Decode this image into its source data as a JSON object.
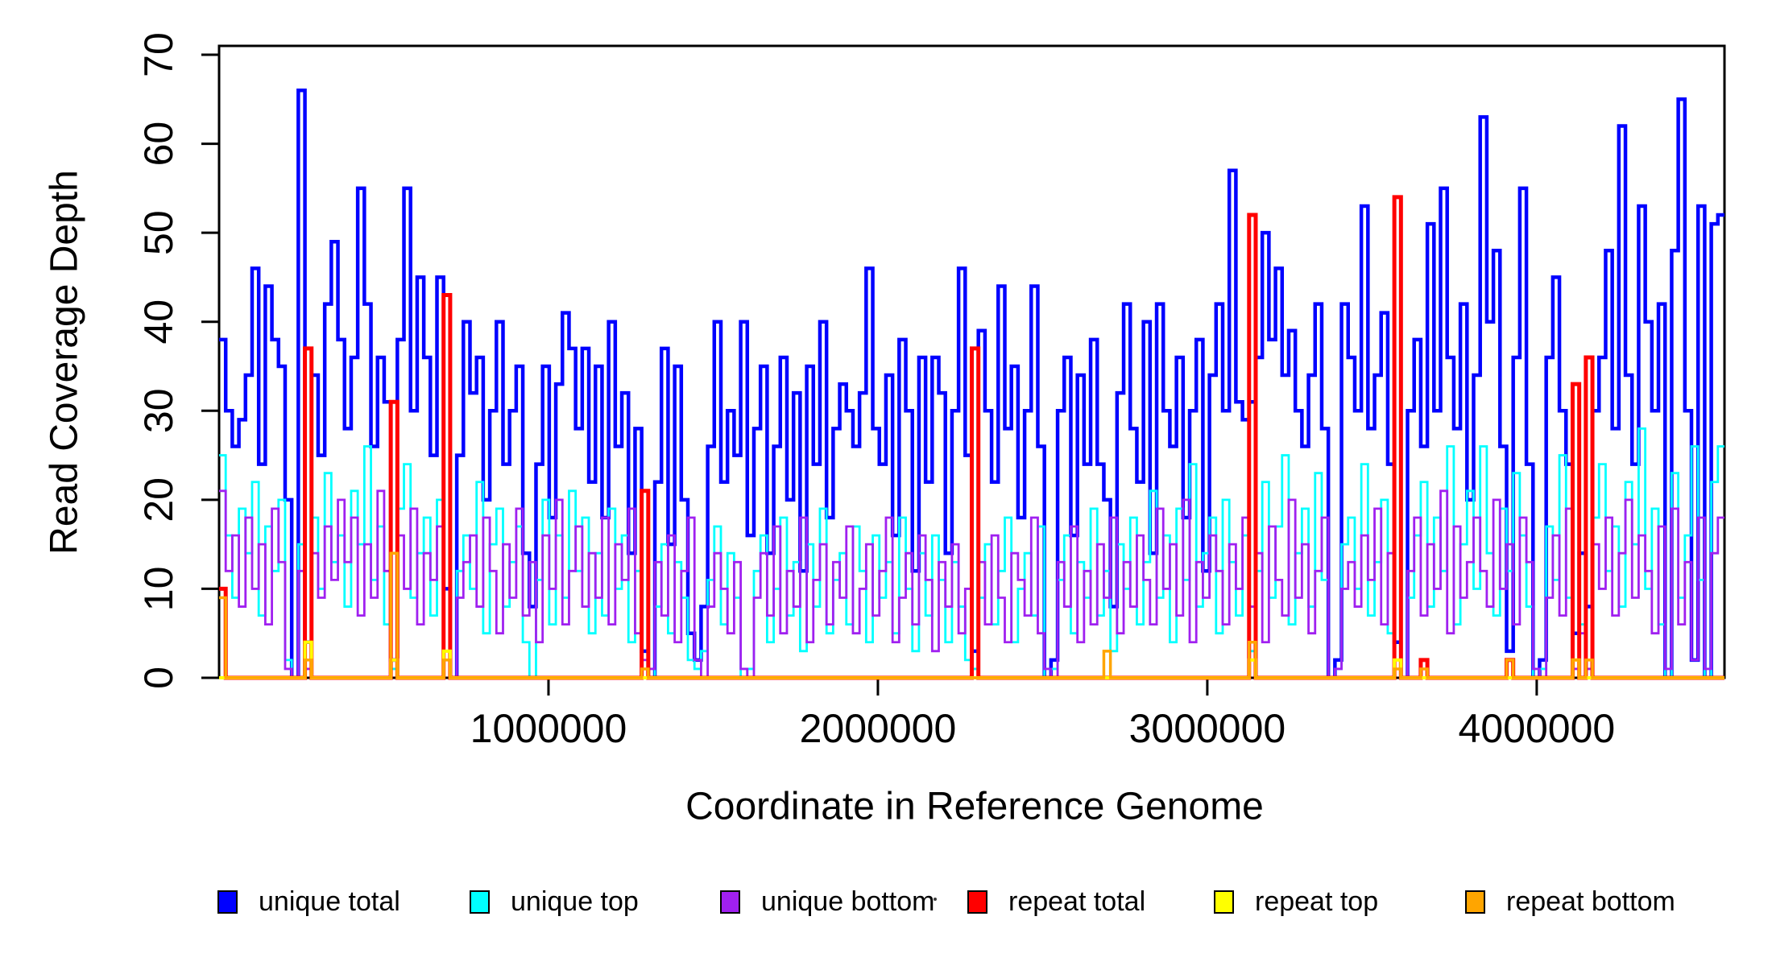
{
  "figure": {
    "y_axis_label": "Read Coverage Depth",
    "x_axis_label": "Coordinate in Reference Genome"
  },
  "chart_data": {
    "type": "line",
    "step": true,
    "title": "",
    "xlabel": "Coordinate in Reference Genome",
    "ylabel": "Read Coverage Depth",
    "xlim": [
      0,
      4570000
    ],
    "ylim": [
      0,
      70
    ],
    "grid": false,
    "legend_position": "bottom",
    "x_start": 0,
    "bin_size": 20000,
    "n_bins": 228,
    "x_ticks": [
      {
        "value": 1000000,
        "label": "1000000"
      },
      {
        "value": 2000000,
        "label": "2000000"
      },
      {
        "value": 3000000,
        "label": "3000000"
      },
      {
        "value": 4000000,
        "label": "4000000"
      }
    ],
    "y_ticks": [
      {
        "value": 0,
        "label": "0"
      },
      {
        "value": 10,
        "label": "10"
      },
      {
        "value": 20,
        "label": "20"
      },
      {
        "value": 30,
        "label": "30"
      },
      {
        "value": 40,
        "label": "40"
      },
      {
        "value": 50,
        "label": "50"
      },
      {
        "value": 60,
        "label": "60"
      },
      {
        "value": 70,
        "label": "70"
      }
    ],
    "series": [
      {
        "id": "unique-total",
        "name": "unique total",
        "color": "#0000FF",
        "line_width": 4.5,
        "values": [
          38,
          30,
          26,
          29,
          34,
          46,
          24,
          44,
          38,
          35,
          20,
          0,
          66,
          4,
          34,
          25,
          42,
          49,
          38,
          28,
          36,
          55,
          42,
          26,
          36,
          31,
          2,
          38,
          55,
          30,
          45,
          36,
          25,
          45,
          10,
          0,
          25,
          40,
          32,
          36,
          20,
          30,
          40,
          24,
          30,
          35,
          14,
          8,
          24,
          35,
          18,
          33,
          41,
          37,
          28,
          37,
          22,
          35,
          18,
          40,
          26,
          32,
          14,
          28,
          3,
          0,
          22,
          37,
          15,
          35,
          20,
          5,
          2,
          8,
          26,
          40,
          22,
          30,
          25,
          40,
          16,
          28,
          35,
          14,
          26,
          36,
          20,
          32,
          12,
          35,
          24,
          40,
          18,
          28,
          33,
          30,
          26,
          32,
          46,
          28,
          24,
          34,
          16,
          38,
          30,
          12,
          36,
          22,
          36,
          32,
          14,
          30,
          46,
          25,
          3,
          39,
          30,
          22,
          44,
          28,
          35,
          18,
          30,
          44,
          26,
          0,
          2,
          30,
          36,
          16,
          34,
          24,
          38,
          24,
          20,
          8,
          32,
          42,
          28,
          22,
          40,
          14,
          42,
          30,
          26,
          36,
          18,
          30,
          38,
          12,
          34,
          42,
          30,
          57,
          31,
          29,
          31,
          36,
          50,
          38,
          46,
          34,
          39,
          30,
          26,
          34,
          42,
          28,
          0,
          2,
          42,
          36,
          30,
          53,
          28,
          34,
          41,
          24,
          4,
          0,
          30,
          38,
          26,
          51,
          30,
          55,
          36,
          28,
          42,
          20,
          34,
          63,
          40,
          48,
          26,
          3,
          36,
          55,
          24,
          0,
          2,
          36,
          45,
          30,
          24,
          5,
          14,
          8,
          30,
          36,
          48,
          28,
          62,
          34,
          24,
          53,
          40,
          30,
          42,
          0,
          48,
          65,
          30,
          2,
          53,
          0,
          51,
          52
        ]
      },
      {
        "id": "unique-top",
        "name": "unique top",
        "color": "#00FFFF",
        "line_width": 2.8,
        "values": [
          25,
          16,
          9,
          19,
          14,
          22,
          7,
          17,
          12,
          20,
          2,
          0,
          15,
          2,
          18,
          10,
          23,
          13,
          16,
          8,
          21,
          15,
          26,
          11,
          17,
          6,
          1,
          19,
          24,
          9,
          14,
          18,
          7,
          20,
          3,
          0,
          12,
          16,
          10,
          22,
          5,
          15,
          19,
          8,
          13,
          17,
          4,
          0,
          11,
          20,
          6,
          16,
          9,
          21,
          12,
          18,
          5,
          14,
          7,
          19,
          10,
          16,
          4,
          12,
          1,
          0,
          8,
          15,
          5,
          13,
          9,
          2,
          1,
          3,
          11,
          17,
          6,
          14,
          9,
          0,
          1,
          12,
          16,
          4,
          10,
          18,
          7,
          13,
          3,
          15,
          8,
          19,
          5,
          11,
          14,
          6,
          17,
          12,
          4,
          16,
          9,
          13,
          5,
          18,
          10,
          3,
          14,
          7,
          16,
          11,
          4,
          13,
          8,
          2,
          1,
          9,
          15,
          6,
          12,
          18,
          4,
          10,
          14,
          7,
          17,
          0,
          1,
          11,
          16,
          5,
          13,
          9,
          19,
          7,
          12,
          3,
          15,
          10,
          18,
          6,
          13,
          21,
          9,
          16,
          4,
          19,
          11,
          24,
          8,
          14,
          18,
          5,
          20,
          13,
          7,
          16,
          3,
          12,
          22,
          9,
          17,
          25,
          6,
          14,
          19,
          8,
          23,
          11,
          0,
          1,
          15,
          18,
          10,
          24,
          7,
          13,
          20,
          5,
          2,
          0,
          9,
          16,
          22,
          8,
          18,
          12,
          26,
          6,
          15,
          21,
          10,
          26,
          14,
          7,
          19,
          12,
          23,
          16,
          8,
          0,
          1,
          17,
          11,
          25,
          9,
          2,
          6,
          2,
          18,
          24,
          12,
          17,
          8,
          22,
          15,
          28,
          10,
          19,
          6,
          0,
          23,
          9,
          16,
          26,
          11,
          0,
          22,
          26
        ]
      },
      {
        "id": "unique-bottom",
        "name": "unique bottom",
        "color": "#A020F0",
        "line_width": 2.8,
        "values": [
          21,
          12,
          16,
          8,
          18,
          10,
          15,
          6,
          19,
          13,
          1,
          0,
          12,
          1,
          14,
          9,
          17,
          11,
          20,
          13,
          18,
          7,
          15,
          9,
          21,
          12,
          2,
          16,
          10,
          19,
          6,
          14,
          11,
          17,
          2,
          0,
          9,
          13,
          16,
          8,
          18,
          12,
          5,
          15,
          9,
          19,
          7,
          13,
          4,
          16,
          10,
          20,
          6,
          12,
          17,
          8,
          14,
          9,
          18,
          6,
          15,
          11,
          19,
          5,
          2,
          1,
          13,
          7,
          16,
          4,
          12,
          18,
          2,
          0,
          8,
          14,
          10,
          5,
          13,
          1,
          0,
          9,
          14,
          7,
          17,
          5,
          12,
          8,
          18,
          4,
          11,
          15,
          6,
          13,
          9,
          17,
          5,
          10,
          15,
          7,
          12,
          18,
          4,
          9,
          14,
          6,
          16,
          11,
          3,
          13,
          8,
          15,
          5,
          10,
          0,
          13,
          6,
          16,
          9,
          4,
          14,
          11,
          7,
          18,
          5,
          1,
          0,
          13,
          8,
          17,
          4,
          12,
          6,
          15,
          9,
          18,
          5,
          13,
          8,
          16,
          11,
          6,
          19,
          10,
          15,
          7,
          20,
          4,
          13,
          9,
          16,
          12,
          6,
          15,
          10,
          18,
          8,
          14,
          4,
          17,
          11,
          7,
          20,
          9,
          15,
          5,
          12,
          18,
          0,
          1,
          10,
          13,
          8,
          16,
          11,
          19,
          6,
          14,
          1,
          0,
          12,
          18,
          7,
          15,
          10,
          21,
          5,
          17,
          9,
          13,
          18,
          12,
          8,
          20,
          10,
          15,
          6,
          18,
          13,
          1,
          0,
          9,
          16,
          7,
          19,
          1,
          5,
          1,
          15,
          10,
          18,
          7,
          14,
          20,
          9,
          16,
          12,
          5,
          17,
          1,
          19,
          6,
          13,
          2,
          18,
          1,
          14,
          18
        ]
      },
      {
        "id": "repeat-total",
        "name": "repeat total",
        "color": "#FF0000",
        "line_width": 5,
        "default": 0,
        "values_sparse": {
          "0": 10,
          "13": 37,
          "26": 31,
          "34": 43,
          "64": 21,
          "114": 37,
          "156": 52,
          "178": 54,
          "182": 2,
          "195": 2,
          "205": 33,
          "207": 36
        }
      },
      {
        "id": "repeat-top",
        "name": "repeat top",
        "color": "#FFFF00",
        "line_width": 4,
        "default": 0,
        "values_sparse": {
          "13": 4,
          "26": 2,
          "34": 3,
          "156": 2,
          "178": 2,
          "205": 2
        }
      },
      {
        "id": "repeat-bottom",
        "name": "repeat bottom",
        "color": "#FFA500",
        "line_width": 3.5,
        "default": 0,
        "values_sparse": {
          "0": 9,
          "13": 2,
          "26": 14,
          "34": 2,
          "64": 1,
          "134": 3,
          "156": 4,
          "178": 1,
          "182": 1,
          "195": 2,
          "205": 2,
          "207": 2
        }
      }
    ]
  }
}
